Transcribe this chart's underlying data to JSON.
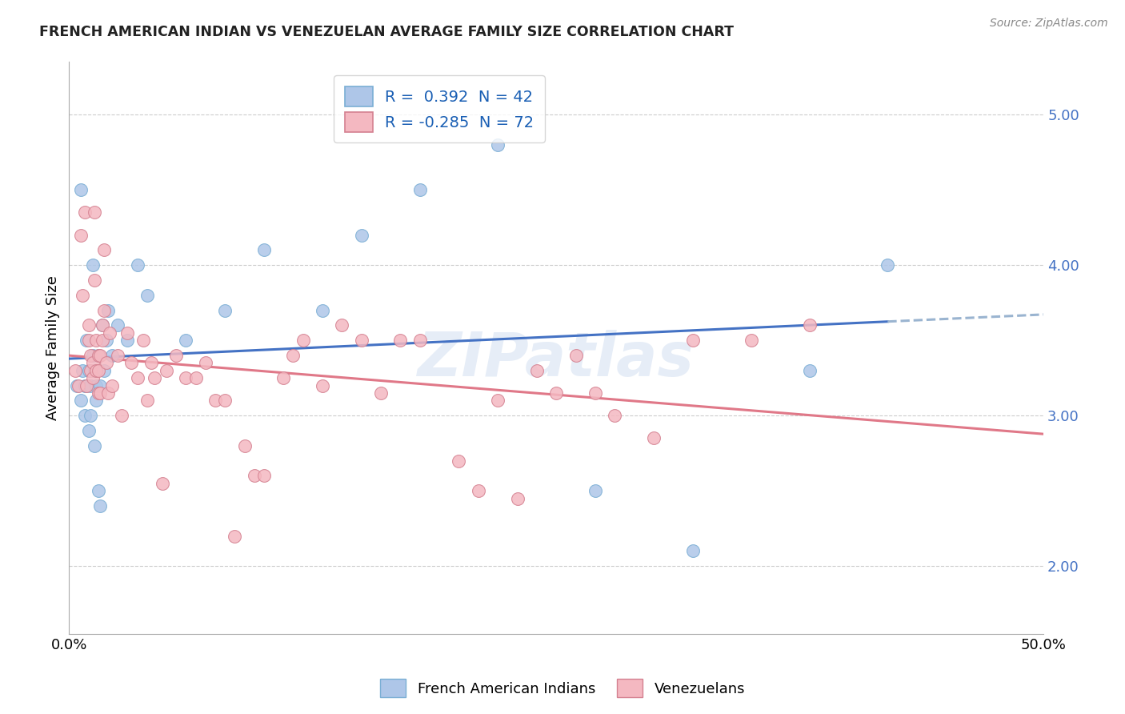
{
  "title": "FRENCH AMERICAN INDIAN VS VENEZUELAN AVERAGE FAMILY SIZE CORRELATION CHART",
  "source": "Source: ZipAtlas.com",
  "ylabel": "Average Family Size",
  "yticks": [
    2.0,
    3.0,
    4.0,
    5.0
  ],
  "xlim": [
    0.0,
    0.5
  ],
  "ylim": [
    1.55,
    5.35
  ],
  "legend_label1": "French American Indians",
  "legend_label2": "Venezuelans",
  "legend_R1": "R =  0.392",
  "legend_N1": "N = 42",
  "legend_R2": "R = -0.285",
  "legend_N2": "N = 72",
  "color_blue": "#aec6e8",
  "color_pink": "#f4b8c1",
  "line_blue": "#4472c4",
  "line_pink": "#e07888",
  "dashed_line_color": "#9ab4d0",
  "watermark": "ZIPatlas",
  "french_x": [
    0.004,
    0.006,
    0.006,
    0.007,
    0.008,
    0.008,
    0.009,
    0.009,
    0.01,
    0.01,
    0.011,
    0.011,
    0.012,
    0.012,
    0.013,
    0.013,
    0.014,
    0.014,
    0.015,
    0.015,
    0.016,
    0.016,
    0.017,
    0.018,
    0.019,
    0.02,
    0.022,
    0.025,
    0.03,
    0.035,
    0.04,
    0.06,
    0.08,
    0.1,
    0.13,
    0.15,
    0.18,
    0.22,
    0.27,
    0.32,
    0.38,
    0.42
  ],
  "french_y": [
    3.2,
    4.5,
    3.1,
    3.3,
    3.0,
    3.2,
    3.2,
    3.5,
    3.3,
    2.9,
    3.2,
    3.0,
    3.4,
    4.0,
    2.8,
    3.3,
    3.1,
    3.2,
    3.4,
    2.5,
    2.4,
    3.2,
    3.6,
    3.3,
    3.5,
    3.7,
    3.4,
    3.6,
    3.5,
    4.0,
    3.8,
    3.5,
    3.7,
    4.1,
    3.7,
    4.2,
    4.5,
    4.8,
    2.5,
    2.1,
    3.3,
    4.0
  ],
  "venezuelan_x": [
    0.003,
    0.005,
    0.006,
    0.007,
    0.008,
    0.009,
    0.01,
    0.01,
    0.011,
    0.011,
    0.012,
    0.012,
    0.013,
    0.013,
    0.014,
    0.014,
    0.015,
    0.015,
    0.015,
    0.016,
    0.016,
    0.017,
    0.017,
    0.018,
    0.018,
    0.019,
    0.02,
    0.021,
    0.022,
    0.025,
    0.027,
    0.03,
    0.032,
    0.035,
    0.038,
    0.04,
    0.042,
    0.044,
    0.048,
    0.05,
    0.055,
    0.06,
    0.065,
    0.07,
    0.075,
    0.08,
    0.085,
    0.09,
    0.095,
    0.1,
    0.11,
    0.115,
    0.12,
    0.13,
    0.14,
    0.15,
    0.16,
    0.17,
    0.18,
    0.2,
    0.21,
    0.22,
    0.23,
    0.24,
    0.25,
    0.26,
    0.27,
    0.28,
    0.3,
    0.32,
    0.35,
    0.38
  ],
  "venezuelan_y": [
    3.3,
    3.2,
    4.2,
    3.8,
    4.35,
    3.2,
    3.5,
    3.6,
    3.3,
    3.4,
    3.35,
    3.25,
    3.9,
    4.35,
    3.5,
    3.3,
    3.3,
    3.15,
    3.4,
    3.15,
    3.4,
    3.6,
    3.5,
    3.7,
    4.1,
    3.35,
    3.15,
    3.55,
    3.2,
    3.4,
    3.0,
    3.55,
    3.35,
    3.25,
    3.5,
    3.1,
    3.35,
    3.25,
    2.55,
    3.3,
    3.4,
    3.25,
    3.25,
    3.35,
    3.1,
    3.1,
    2.2,
    2.8,
    2.6,
    2.6,
    3.25,
    3.4,
    3.5,
    3.2,
    3.6,
    3.5,
    3.15,
    3.5,
    3.5,
    2.7,
    2.5,
    3.1,
    2.45,
    3.3,
    3.15,
    3.4,
    3.15,
    3.0,
    2.85,
    3.5,
    3.5,
    3.6
  ]
}
